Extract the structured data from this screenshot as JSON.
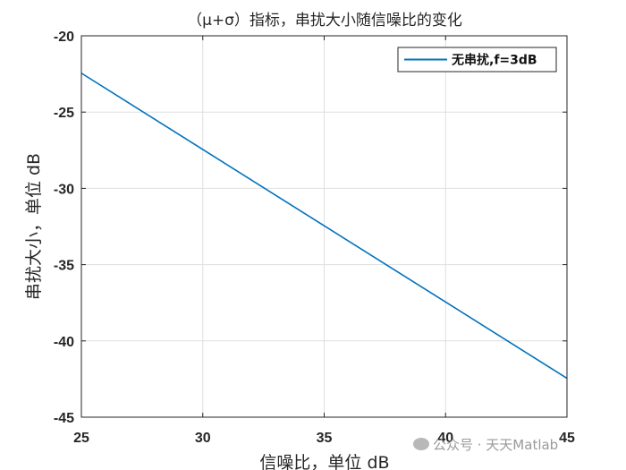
{
  "chart_data": {
    "type": "line",
    "title": "（μ+σ）指标，串扰大小随信噪比的变化",
    "xlabel": "信噪比，单位 dB",
    "ylabel": "串扰大小，单位 dB",
    "xlim": [
      25,
      45
    ],
    "ylim": [
      -45,
      -20
    ],
    "xticks": [
      25,
      30,
      35,
      40,
      45
    ],
    "yticks": [
      -20,
      -25,
      -30,
      -35,
      -40,
      -45
    ],
    "grid": true,
    "legend_position": "top-right",
    "series": [
      {
        "name": "无串扰,f=3dB",
        "color": "#0072BD",
        "x": [
          25,
          30,
          35,
          40,
          45
        ],
        "y": [
          -22.45,
          -27.45,
          -32.45,
          -37.45,
          -42.45
        ]
      }
    ]
  },
  "watermark": {
    "text": "公众号 · 天天Matlab",
    "icon": "wechat-icon"
  }
}
